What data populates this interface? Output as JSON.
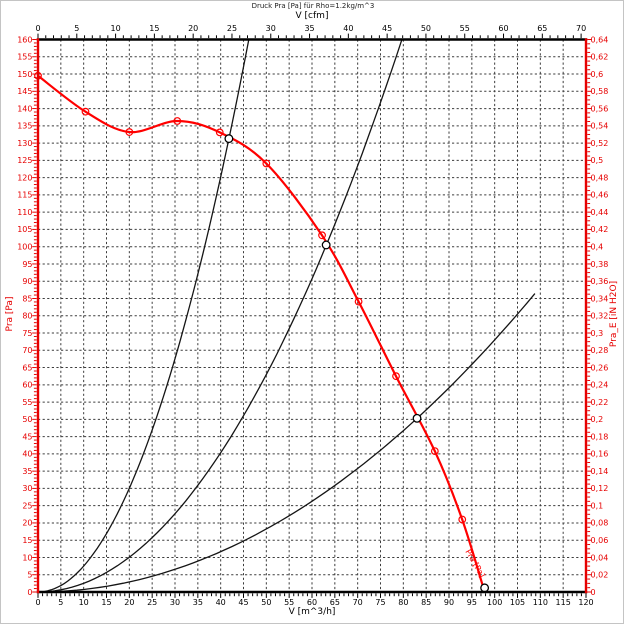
{
  "chart_data": {
    "type": "line",
    "title": "Druck Pra [Pa] für Rho=1.2kg/m^3",
    "bottom_axis": {
      "label": "V [m^3/h]",
      "min": 0,
      "max": 120,
      "grid_step": 5,
      "label_step": 5,
      "minor_step": 1,
      "ticks": [
        0,
        5,
        10,
        15,
        20,
        25,
        30,
        35,
        40,
        45,
        50,
        55,
        60,
        65,
        70,
        75,
        80,
        85,
        90,
        95,
        100,
        105,
        110,
        115,
        120
      ]
    },
    "top_axis": {
      "label": "V [cfm]",
      "min": 0,
      "max": 70,
      "label_step": 5,
      "minor_step": 1,
      "to_m3h": 1.699,
      "ticks": [
        0,
        5,
        10,
        15,
        20,
        25,
        30,
        35,
        40,
        45,
        50,
        55,
        60,
        65,
        70
      ]
    },
    "left_axis": {
      "label": "Pra [Pa]",
      "min": 0,
      "max": 160,
      "grid_step": 5,
      "label_step": 5,
      "minor_step": 1,
      "ticks": [
        0,
        5,
        10,
        15,
        20,
        25,
        30,
        35,
        40,
        45,
        50,
        55,
        60,
        65,
        70,
        75,
        80,
        85,
        90,
        95,
        100,
        105,
        110,
        115,
        120,
        125,
        130,
        135,
        140,
        145,
        150,
        155,
        160
      ]
    },
    "right_axis": {
      "label": "Pra_E [iN H2O]",
      "min": 0,
      "max": 0.64,
      "label_step": 0.02,
      "minor_step": 0.005,
      "tick_values": [
        0,
        0.02,
        0.04,
        0.06,
        0.08,
        0.1,
        0.12,
        0.14,
        0.16,
        0.18,
        0.2,
        0.22,
        0.24,
        0.26,
        0.28,
        0.3,
        0.32,
        0.34,
        0.36,
        0.38,
        0.4,
        0.42,
        0.44,
        0.46,
        0.48,
        0.5,
        0.52,
        0.54,
        0.56,
        0.58,
        0.6,
        0.62,
        0.64
      ],
      "tick_labels": [
        "0",
        "0,02",
        "0,04",
        "0,06",
        "0,08",
        "0,1",
        "0,12",
        "0,14",
        "0,16",
        "0,18",
        "0,2",
        "0,22",
        "0,24",
        "0,26",
        "0,28",
        "0,3",
        "0,32",
        "0,34",
        "0,36",
        "0,38",
        "0,4",
        "0,42",
        "0,44",
        "0,46",
        "0,48",
        "0,5",
        "0,52",
        "0,54",
        "0,56",
        "0,58",
        "0,6",
        "0,62",
        "0,64"
      ]
    },
    "fan_curve": {
      "name": "Pra [Pa]",
      "points": [
        [
          0,
          149.5
        ],
        [
          10.4,
          139.1
        ],
        [
          20,
          133.2
        ],
        [
          30.5,
          136.4
        ],
        [
          39.8,
          133.1
        ],
        [
          50,
          124.1
        ],
        [
          62.2,
          103.3
        ],
        [
          70.2,
          84.1
        ],
        [
          78.4,
          62.5
        ],
        [
          86.9,
          40.8
        ],
        [
          92.9,
          21
        ],
        [
          97.8,
          0
        ]
      ]
    },
    "system_curves": [
      {
        "k": 0.0751,
        "v_end": 46.2
      },
      {
        "k": 0.0252,
        "v_end": 79.7
      },
      {
        "k": 0.0073,
        "v_end": 108.8
      }
    ],
    "operating_points": [
      [
        41.8,
        131.3
      ],
      [
        63.1,
        100.5
      ],
      [
        83,
        50.3
      ],
      [
        97.8,
        1.2
      ]
    ],
    "colors": {
      "curve": "#ff0000",
      "axis_red": "#e60000",
      "axis_black": "#000000",
      "grid": "#3d3d3d",
      "system": "#151515",
      "op_fill": "#ffffff"
    }
  }
}
